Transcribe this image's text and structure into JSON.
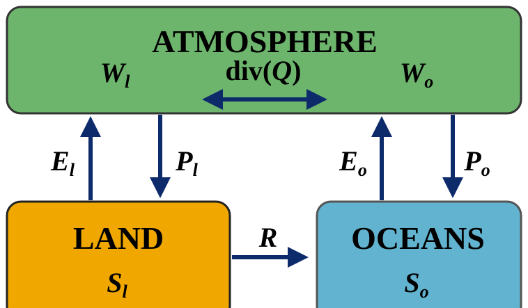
{
  "nodes": [
    {
      "label": "ATMOSPHERE",
      "items": [
        {
          "base": "W",
          "sub": "l"
        },
        {
          "parts": [
            "div(",
            "Q",
            ")"
          ]
        },
        {
          "base": "W",
          "sub": "o"
        }
      ]
    },
    {
      "label": "LAND",
      "items": [
        {
          "base": "S",
          "sub": "l"
        }
      ]
    },
    {
      "label": "OCEANS",
      "items": [
        {
          "base": "S",
          "sub": "o"
        }
      ]
    }
  ],
  "edges": [
    {
      "base": "E",
      "sub": "l"
    },
    {
      "base": "P",
      "sub": "l"
    },
    {
      "base": "E",
      "sub": "o"
    },
    {
      "base": "P",
      "sub": "o"
    },
    {
      "base": "R"
    }
  ]
}
